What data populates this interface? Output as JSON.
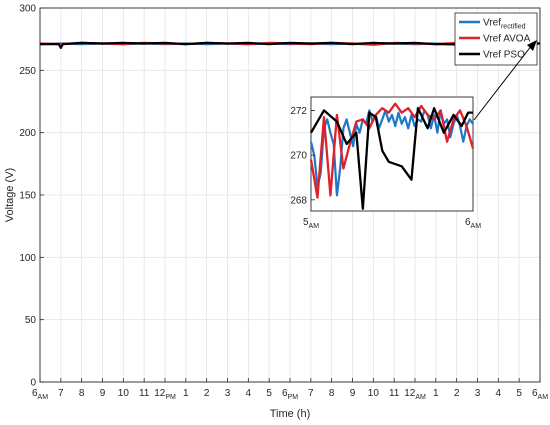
{
  "chart_data": [
    {
      "type": "line",
      "xlabel": "Time (h)",
      "ylabel": "Voltage (V)",
      "ylim": [
        0,
        300
      ],
      "yticks": [
        0,
        50,
        100,
        150,
        200,
        250,
        300
      ],
      "xlim": [
        0,
        24
      ],
      "xticks": [
        {
          "x": 0,
          "main": "6",
          "sub": "AM"
        },
        {
          "x": 1,
          "main": "7",
          "sub": ""
        },
        {
          "x": 2,
          "main": "8",
          "sub": ""
        },
        {
          "x": 3,
          "main": "9",
          "sub": ""
        },
        {
          "x": 4,
          "main": "10",
          "sub": ""
        },
        {
          "x": 5,
          "main": "11",
          "sub": ""
        },
        {
          "x": 6,
          "main": "12",
          "sub": "PM"
        },
        {
          "x": 7,
          "main": "1",
          "sub": ""
        },
        {
          "x": 8,
          "main": "2",
          "sub": ""
        },
        {
          "x": 9,
          "main": "3",
          "sub": ""
        },
        {
          "x": 10,
          "main": "4",
          "sub": ""
        },
        {
          "x": 11,
          "main": "5",
          "sub": ""
        },
        {
          "x": 12,
          "main": "6",
          "sub": "PM"
        },
        {
          "x": 13,
          "main": "7",
          "sub": ""
        },
        {
          "x": 14,
          "main": "8",
          "sub": ""
        },
        {
          "x": 15,
          "main": "9",
          "sub": ""
        },
        {
          "x": 16,
          "main": "10",
          "sub": ""
        },
        {
          "x": 17,
          "main": "11",
          "sub": ""
        },
        {
          "x": 18,
          "main": "12",
          "sub": "AM"
        },
        {
          "x": 19,
          "main": "1",
          "sub": ""
        },
        {
          "x": 20,
          "main": "2",
          "sub": ""
        },
        {
          "x": 21,
          "main": "3",
          "sub": ""
        },
        {
          "x": 22,
          "main": "4",
          "sub": ""
        },
        {
          "x": 23,
          "main": "5",
          "sub": ""
        },
        {
          "x": 24,
          "main": "6",
          "sub": "AM"
        }
      ],
      "grid": true,
      "legend_position": "top-right",
      "series": [
        {
          "name": "Vref",
          "name_sub": "rectified",
          "color": "#1f77c8",
          "x": [
            0,
            1,
            2,
            3,
            4,
            5,
            6,
            7,
            8,
            9,
            10,
            11,
            12,
            13,
            14,
            15,
            16,
            17,
            18,
            19,
            20,
            21,
            22,
            23,
            24
          ],
          "y": [
            271,
            271.5,
            271,
            271.5,
            271,
            271.5,
            271,
            271.5,
            271,
            271.5,
            271,
            271.5,
            271,
            271.5,
            271,
            271.5,
            271,
            271.5,
            271,
            271.5,
            270.5,
            271.5,
            271,
            271.5,
            271.5
          ]
        },
        {
          "name": "Vref AVOA",
          "name_sub": "",
          "color": "#e0202a",
          "x": [
            0,
            1,
            2,
            3,
            4,
            5,
            6,
            7,
            8,
            9,
            10,
            11,
            12,
            13,
            14,
            15,
            16,
            17,
            18,
            19,
            20,
            21,
            22,
            23,
            24
          ],
          "y": [
            271.5,
            271,
            272,
            271.5,
            271,
            272,
            271.5,
            271,
            272,
            271.5,
            271,
            272,
            271.5,
            271,
            272,
            271.5,
            270.5,
            272,
            271.5,
            271,
            272,
            271.5,
            271,
            272,
            271.5
          ]
        },
        {
          "name": "Vref PSO",
          "name_sub": "",
          "color": "#000000",
          "x": [
            0,
            0.9,
            1.0,
            1.1,
            2,
            3,
            4,
            5,
            6,
            7,
            8,
            9,
            10,
            11,
            12,
            13,
            14,
            15,
            16,
            17,
            18,
            19,
            20.9,
            21.0,
            21.1,
            22,
            23,
            24
          ],
          "y": [
            271,
            271,
            268,
            271,
            272,
            271.5,
            272,
            271.5,
            272,
            271,
            272,
            271.5,
            272,
            271,
            272,
            271.5,
            272,
            271,
            272,
            271.5,
            272,
            271,
            271,
            268.5,
            271,
            272,
            271.5,
            271.5
          ]
        }
      ]
    },
    {
      "type": "line",
      "role": "inset",
      "xticks": [
        {
          "x": 0,
          "main": "5",
          "sub": "AM"
        },
        {
          "x": 1,
          "main": "6",
          "sub": "AM"
        }
      ],
      "ylim": [
        267.5,
        272.6
      ],
      "yticks": [
        268,
        270,
        272
      ],
      "xlim": [
        0,
        1
      ],
      "series": [
        {
          "name": "Vref rectified",
          "color": "#1f77c8",
          "x": [
            0,
            0.02,
            0.04,
            0.06,
            0.08,
            0.1,
            0.12,
            0.14,
            0.16,
            0.18,
            0.2,
            0.22,
            0.24,
            0.26,
            0.28,
            0.3,
            0.32,
            0.34,
            0.36,
            0.38,
            0.4,
            0.42,
            0.44,
            0.46,
            0.48,
            0.5,
            0.52,
            0.54,
            0.56,
            0.58,
            0.6,
            0.62,
            0.64,
            0.66,
            0.68,
            0.7,
            0.72,
            0.74,
            0.76,
            0.78,
            0.8,
            0.82,
            0.84,
            0.86,
            0.88,
            0.9,
            0.92,
            0.94,
            0.96,
            0.98,
            1.0
          ],
          "y": [
            270.6,
            270.0,
            268.6,
            269.2,
            271.2,
            271.6,
            271.0,
            270.5,
            268.2,
            269.4,
            271.2,
            271.6,
            271.0,
            270.4,
            271.4,
            271.0,
            271.6,
            271.4,
            272.0,
            271.5,
            271.8,
            271.2,
            271.6,
            272.0,
            271.5,
            271.8,
            271.3,
            271.9,
            271.4,
            271.7,
            271.2,
            271.8,
            271.3,
            271.6,
            271.5,
            272.0,
            271.8,
            271.2,
            271.8,
            271.0,
            272.0,
            271.4,
            271.6,
            270.8,
            271.4,
            271.8,
            271.3,
            270.6,
            271.3,
            271.6,
            271.4
          ]
        },
        {
          "name": "Vref AVOA",
          "color": "#e0202a",
          "x": [
            0,
            0.04,
            0.08,
            0.12,
            0.16,
            0.2,
            0.24,
            0.28,
            0.32,
            0.36,
            0.4,
            0.44,
            0.48,
            0.52,
            0.56,
            0.6,
            0.64,
            0.68,
            0.72,
            0.76,
            0.8,
            0.84,
            0.88,
            0.92,
            0.96,
            1.0
          ],
          "y": [
            269.8,
            268.1,
            271.7,
            268.2,
            271.8,
            269.4,
            270.5,
            271.5,
            271.6,
            271.2,
            271.8,
            272.1,
            271.9,
            272.3,
            271.9,
            272.1,
            271.7,
            272.2,
            271.8,
            271.6,
            272.0,
            270.6,
            271.6,
            272.0,
            271.3,
            270.3
          ]
        },
        {
          "name": "Vref PSO",
          "color": "#000000",
          "x": [
            0,
            0.08,
            0.16,
            0.22,
            0.28,
            0.32,
            0.36,
            0.4,
            0.44,
            0.48,
            0.56,
            0.62,
            0.66,
            0.72,
            0.76,
            0.82,
            0.88,
            0.93,
            0.97,
            1.0
          ],
          "y": [
            271.0,
            272.0,
            271.5,
            270.5,
            271.0,
            267.6,
            271.9,
            271.7,
            270.2,
            269.7,
            269.5,
            268.9,
            272.1,
            271.2,
            272.1,
            271.0,
            271.8,
            271.3,
            271.9,
            271.9
          ]
        }
      ]
    }
  ]
}
